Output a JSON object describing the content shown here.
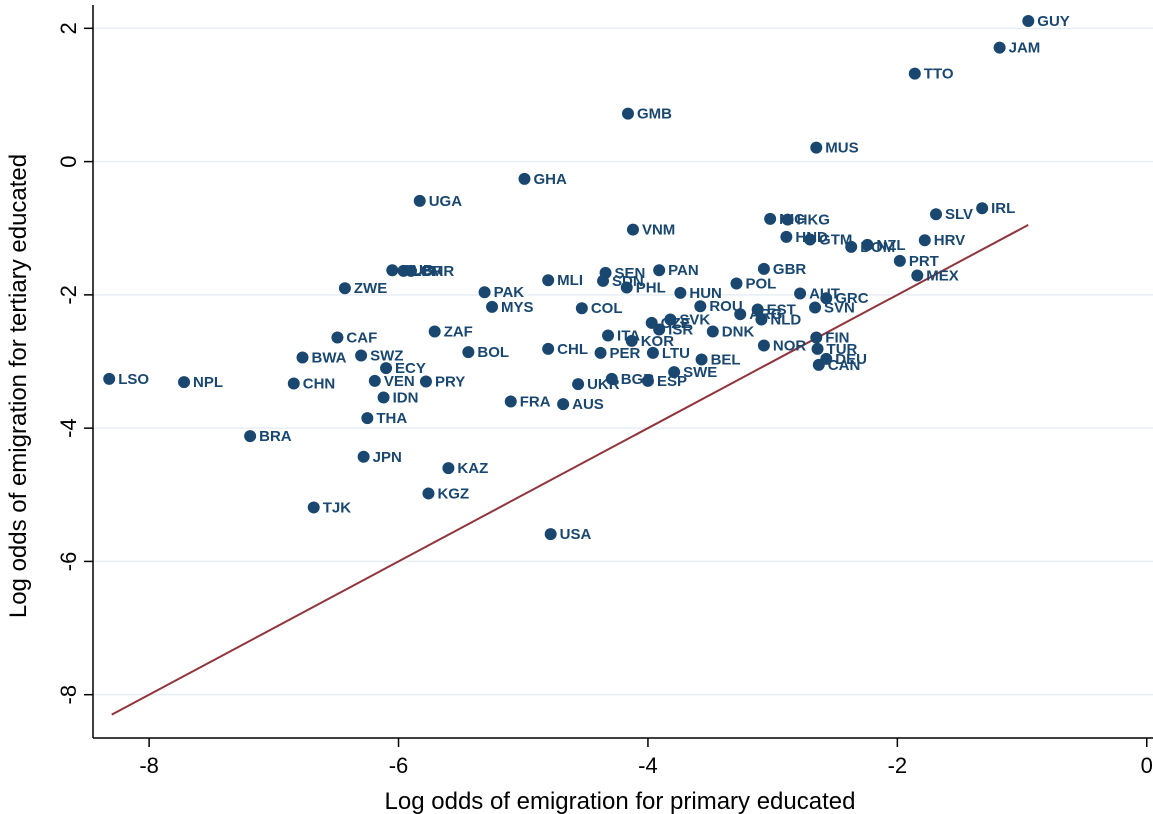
{
  "chart_data": {
    "type": "scatter",
    "title": "",
    "xlabel": "Log odds of emigration for primary educated",
    "ylabel": "Log odds of emigration for tertiary educated",
    "xlim": [
      -8.45,
      0.05
    ],
    "ylim": [
      -8.65,
      2.35
    ],
    "xticks": [
      -8,
      -6,
      -4,
      -2,
      0
    ],
    "yticks": [
      2,
      0,
      -2,
      -4,
      -6,
      -8
    ],
    "xtick_labels": [
      "-8",
      "-6",
      "-4",
      "-2",
      "0"
    ],
    "ytick_labels": [
      "2",
      "0",
      "-2",
      "-4",
      "-6",
      "-8"
    ],
    "grid": true,
    "legend": "none",
    "colors": {
      "marker": "#1a476f",
      "line": "#90353b",
      "grid": "#e6eef5"
    },
    "line": {
      "x": [
        -8.3,
        -0.95
      ],
      "y": [
        -8.3,
        -0.95
      ]
    },
    "points": [
      {
        "label": "GUY",
        "x": -0.95,
        "y": 2.11
      },
      {
        "label": "JAM",
        "x": -1.18,
        "y": 1.71
      },
      {
        "label": "TTO",
        "x": -1.86,
        "y": 1.32
      },
      {
        "label": "GMB",
        "x": -4.16,
        "y": 0.72
      },
      {
        "label": "MUS",
        "x": -2.65,
        "y": 0.21
      },
      {
        "label": "GHA",
        "x": -4.99,
        "y": -0.26
      },
      {
        "label": "UGA",
        "x": -5.83,
        "y": -0.59
      },
      {
        "label": "IRL",
        "x": -1.32,
        "y": -0.7
      },
      {
        "label": "SLV",
        "x": -1.69,
        "y": -0.79
      },
      {
        "label": "NIC",
        "x": -3.02,
        "y": -0.86
      },
      {
        "label": "HKG",
        "x": -2.88,
        "y": -0.87
      },
      {
        "label": "VNM",
        "x": -4.12,
        "y": -1.02
      },
      {
        "label": "HND",
        "x": -2.89,
        "y": -1.13
      },
      {
        "label": "GTM",
        "x": -2.7,
        "y": -1.17
      },
      {
        "label": "HRV",
        "x": -1.78,
        "y": -1.18
      },
      {
        "label": "NZL",
        "x": -2.24,
        "y": -1.25
      },
      {
        "label": "DOM",
        "x": -2.37,
        "y": -1.28
      },
      {
        "label": "PRT",
        "x": -1.98,
        "y": -1.49
      },
      {
        "label": "CUB",
        "x": -6.05,
        "y": -1.63
      },
      {
        "label": "LBR",
        "x": -5.96,
        "y": -1.64
      },
      {
        "label": "CMR",
        "x": -5.9,
        "y": -1.64
      },
      {
        "label": "GBR",
        "x": -3.07,
        "y": -1.61
      },
      {
        "label": "PAN",
        "x": -3.91,
        "y": -1.63
      },
      {
        "label": "SEN",
        "x": -4.34,
        "y": -1.67
      },
      {
        "label": "MEX",
        "x": -1.84,
        "y": -1.71
      },
      {
        "label": "MLI",
        "x": -4.8,
        "y": -1.78
      },
      {
        "label": "SDN",
        "x": -4.36,
        "y": -1.79
      },
      {
        "label": "POL",
        "x": -3.29,
        "y": -1.83
      },
      {
        "label": "PHL",
        "x": -4.17,
        "y": -1.89
      },
      {
        "label": "ZWE",
        "x": -6.43,
        "y": -1.9
      },
      {
        "label": "PAK",
        "x": -5.31,
        "y": -1.96
      },
      {
        "label": "HUN",
        "x": -3.74,
        "y": -1.97
      },
      {
        "label": "AUT",
        "x": -2.78,
        "y": -1.98
      },
      {
        "label": "GRC",
        "x": -2.57,
        "y": -2.05
      },
      {
        "label": "ROU",
        "x": -3.58,
        "y": -2.17
      },
      {
        "label": "MYS",
        "x": -5.25,
        "y": -2.18
      },
      {
        "label": "COL",
        "x": -4.53,
        "y": -2.2
      },
      {
        "label": "SVN",
        "x": -2.66,
        "y": -2.19
      },
      {
        "label": "EST",
        "x": -3.12,
        "y": -2.22
      },
      {
        "label": "ARG",
        "x": -3.26,
        "y": -2.29
      },
      {
        "label": "NLD",
        "x": -3.09,
        "y": -2.37
      },
      {
        "label": "SVK",
        "x": -3.82,
        "y": -2.37
      },
      {
        "label": "CZE",
        "x": -3.97,
        "y": -2.42
      },
      {
        "label": "ISR",
        "x": -3.91,
        "y": -2.52
      },
      {
        "label": "ZAF",
        "x": -5.71,
        "y": -2.55
      },
      {
        "label": "DNK",
        "x": -3.48,
        "y": -2.55
      },
      {
        "label": "ITA",
        "x": -4.32,
        "y": -2.61
      },
      {
        "label": "FIN",
        "x": -2.65,
        "y": -2.64
      },
      {
        "label": "CAF",
        "x": -6.49,
        "y": -2.64
      },
      {
        "label": "KOR",
        "x": -4.13,
        "y": -2.69
      },
      {
        "label": "NOR",
        "x": -3.07,
        "y": -2.76
      },
      {
        "label": "CHL",
        "x": -4.8,
        "y": -2.81
      },
      {
        "label": "TUR",
        "x": -2.64,
        "y": -2.81
      },
      {
        "label": "PER",
        "x": -4.38,
        "y": -2.87
      },
      {
        "label": "BOL",
        "x": -5.44,
        "y": -2.86
      },
      {
        "label": "LTU",
        "x": -3.96,
        "y": -2.87
      },
      {
        "label": "BWA",
        "x": -6.77,
        "y": -2.94
      },
      {
        "label": "SWZ",
        "x": -6.3,
        "y": -2.91
      },
      {
        "label": "DEU",
        "x": -2.57,
        "y": -2.96
      },
      {
        "label": "BEL",
        "x": -3.57,
        "y": -2.97
      },
      {
        "label": "CAN",
        "x": -2.63,
        "y": -3.05
      },
      {
        "label": "ECY",
        "x": -6.1,
        "y": -3.1
      },
      {
        "label": "VEN",
        "x": -6.19,
        "y": -3.29
      },
      {
        "label": "SWE",
        "x": -3.79,
        "y": -3.16
      },
      {
        "label": "PRY",
        "x": -5.78,
        "y": -3.3
      },
      {
        "label": "BGR",
        "x": -4.29,
        "y": -3.26
      },
      {
        "label": "ESP",
        "x": -4.0,
        "y": -3.29
      },
      {
        "label": "LSO",
        "x": -8.32,
        "y": -3.26
      },
      {
        "label": "NPL",
        "x": -7.72,
        "y": -3.31
      },
      {
        "label": "CHN",
        "x": -6.84,
        "y": -3.33
      },
      {
        "label": "UKR",
        "x": -4.56,
        "y": -3.34
      },
      {
        "label": "IDN",
        "x": -6.12,
        "y": -3.54
      },
      {
        "label": "FRA",
        "x": -5.1,
        "y": -3.6
      },
      {
        "label": "AUS",
        "x": -4.68,
        "y": -3.64
      },
      {
        "label": "THA",
        "x": -6.25,
        "y": -3.85
      },
      {
        "label": "BRA",
        "x": -7.19,
        "y": -4.12
      },
      {
        "label": "JPN",
        "x": -6.28,
        "y": -4.43
      },
      {
        "label": "KAZ",
        "x": -5.6,
        "y": -4.6
      },
      {
        "label": "KGZ",
        "x": -5.76,
        "y": -4.98
      },
      {
        "label": "TJK",
        "x": -6.68,
        "y": -5.19
      },
      {
        "label": "USA",
        "x": -4.78,
        "y": -5.59
      }
    ]
  }
}
